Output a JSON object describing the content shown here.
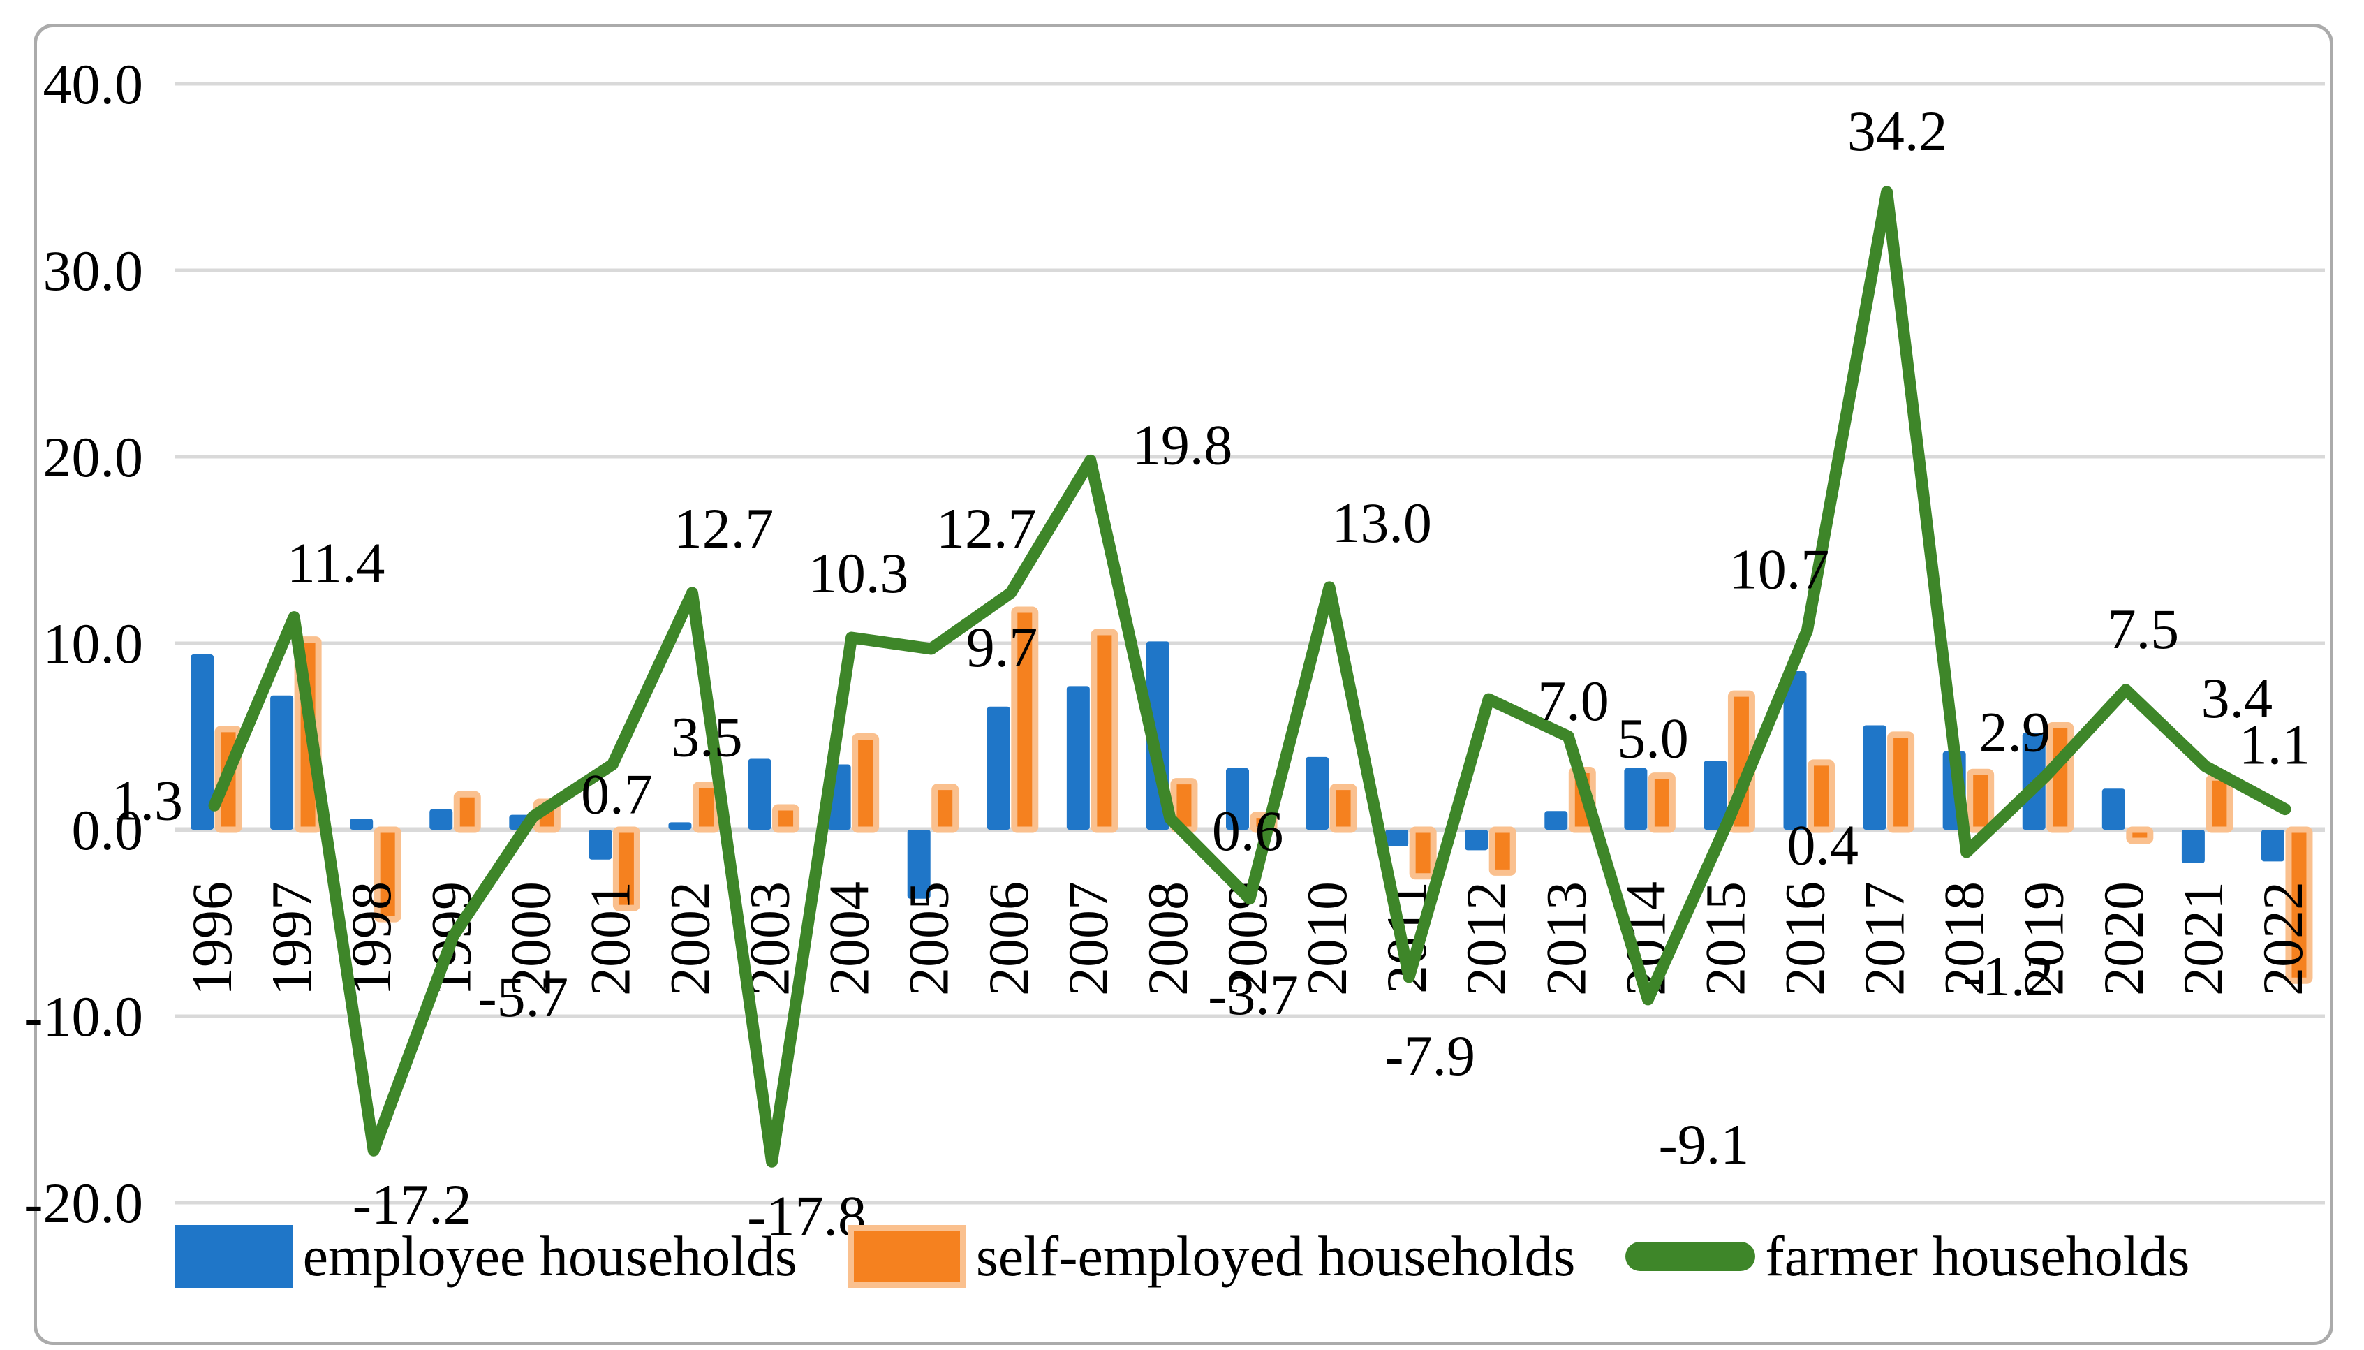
{
  "figure": {
    "background": "#FFFFFF",
    "border_color": "#ABABAB"
  },
  "legend": {
    "items": [
      {
        "label": "employee households",
        "swatch": "rect",
        "color": "#1F76C8"
      },
      {
        "label": "self-employed households",
        "swatch": "rect-bordered",
        "color": "#F5811F",
        "border_color": "#FAC08E"
      },
      {
        "label": "farmer households",
        "swatch": "line",
        "color": "#3E8629"
      }
    ]
  },
  "chart_data": {
    "type": "bar+line",
    "title": "",
    "xlabel": "",
    "ylabel": "",
    "categories": [
      "1996",
      "1997",
      "1998",
      "1999",
      "2000",
      "2001",
      "2002",
      "2003",
      "2004",
      "2005",
      "2006",
      "2007",
      "2008",
      "2009",
      "2010",
      "2011",
      "2012",
      "2013",
      "2014",
      "2015",
      "2016",
      "2017",
      "2018",
      "2019",
      "2020",
      "2021",
      "2022"
    ],
    "series": [
      {
        "name": "employee households",
        "type": "bar",
        "color": "#1F76C8",
        "values": [
          9.4,
          7.2,
          0.6,
          1.1,
          0.8,
          -1.6,
          0.4,
          3.8,
          3.5,
          -3.7,
          6.6,
          7.7,
          10.1,
          3.3,
          3.9,
          -0.9,
          -1.1,
          1.0,
          3.3,
          3.7,
          8.5,
          5.6,
          4.2,
          5.2,
          2.2,
          -1.8,
          -1.7
        ]
      },
      {
        "name": "self-employed households",
        "type": "bar",
        "color": "#F5811F",
        "border_color": "#FAC08E",
        "values": [
          5.4,
          10.2,
          -4.8,
          1.9,
          1.5,
          -4.2,
          2.4,
          1.2,
          5.0,
          2.3,
          11.8,
          10.6,
          2.6,
          0.8,
          2.3,
          -2.5,
          -2.3,
          3.2,
          2.9,
          7.3,
          3.6,
          5.1,
          3.1,
          5.6,
          -0.6,
          2.8,
          -8.1
        ]
      },
      {
        "name": "farmer households",
        "type": "line",
        "color": "#3E8629",
        "values": [
          1.3,
          11.4,
          -17.2,
          -5.7,
          0.7,
          3.5,
          12.7,
          -17.8,
          10.3,
          9.7,
          12.7,
          19.8,
          0.6,
          -3.7,
          13.0,
          -7.9,
          7.0,
          5.0,
          -9.1,
          0.4,
          10.7,
          34.2,
          -1.2,
          2.9,
          7.5,
          3.4,
          1.1
        ],
        "data_labels_visible": true,
        "label_offsets": [
          [
            -45,
            20,
            "e"
          ],
          [
            60,
            -50,
            "m"
          ],
          [
            55,
            105,
            "m"
          ],
          [
            100,
            115,
            "m"
          ],
          [
            120,
            -5,
            "m"
          ],
          [
            135,
            -12,
            "m"
          ],
          [
            45,
            -65,
            "m"
          ],
          [
            50,
            105,
            "m"
          ],
          [
            10,
            -65,
            "m"
          ],
          [
            50,
            25,
            "s"
          ],
          [
            -35,
            -65,
            "m"
          ],
          [
            60,
            5,
            "s"
          ],
          [
            60,
            45,
            "s"
          ],
          [
            5,
            165,
            "m"
          ],
          [
            75,
            -65,
            "m"
          ],
          [
            30,
            140,
            "m"
          ],
          [
            70,
            30,
            "s"
          ],
          [
            70,
            30,
            "s"
          ],
          [
            80,
            235,
            "m"
          ],
          [
            85,
            60,
            "s"
          ],
          [
            -40,
            -60,
            "m"
          ],
          [
            15,
            -60,
            "m"
          ],
          [
            60,
            205,
            "m"
          ],
          [
            -45,
            -35,
            "m"
          ],
          [
            25,
            -60,
            "m"
          ],
          [
            45,
            -70,
            "m"
          ],
          [
            -15,
            -65,
            "m"
          ]
        ]
      }
    ],
    "ylim": [
      -20,
      40
    ],
    "ytick_step": 10,
    "ytick_labels": [
      "40.0",
      "30.0",
      "20.0",
      "10.0",
      "0.0",
      "-10.0",
      "-20.0"
    ],
    "grid": "horizontal",
    "gridline_color": "#D9D9D9",
    "legend_position": "bottom",
    "x_labels_rotation": -90
  }
}
